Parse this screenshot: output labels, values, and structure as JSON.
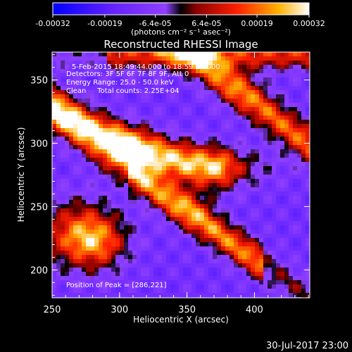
{
  "chart_data": {
    "type": "heatmap",
    "title": "Reconstructed RHESSI Image",
    "xlabel": "Heliocentric X (arcsec)",
    "ylabel": "Heliocentric Y (arcsec)",
    "xlim": [
      250,
      441
    ],
    "ylim": [
      178,
      372
    ],
    "xticks": [
      250,
      300,
      350,
      400
    ],
    "yticks": [
      200,
      250,
      300,
      350
    ],
    "colorbar": {
      "unit_label": "(photons cm⁻² s⁻¹ asec⁻²)",
      "range": [
        -0.00032,
        0.00032
      ],
      "tick_values": [
        -0.00032,
        -0.00019,
        -6.4e-05,
        6.4e-05,
        0.00019,
        0.00032
      ],
      "tick_labels": [
        "-0.00032",
        "-0.00019",
        "-6.4e-05",
        "6.4e-05",
        "0.00019",
        "0.00032"
      ],
      "colors": [
        "#0000ff",
        "#6020ff",
        "#9040ff",
        "#000000",
        "#8a0000",
        "#ff2000",
        "#ffb000",
        "#ffffff"
      ]
    },
    "annotations": [
      "5-Feb-2015 18:49:44.000 to 18:59:44.000",
      "Detectors: 3F 5F 6F 7F 8F 9F, Att 0",
      "Energy Range: 25.0 - 50.0 keV",
      "Clean     Total counts: 2.25E+04",
      "Position of Peak = [286,221]"
    ],
    "peak_position": [
      286,
      221
    ],
    "sources": [
      {
        "center": [
          286,
          221
        ],
        "peak": 0.00032
      },
      {
        "center": [
          306,
          292
        ],
        "peak": 0.00029
      },
      {
        "center": [
          356,
          254
        ],
        "peak": 0.00021
      },
      {
        "center": [
          390,
          345
        ],
        "peak": 0.00017
      }
    ],
    "background_level": -0.00012,
    "timestamp": "30-Jul-2017 23:00"
  }
}
